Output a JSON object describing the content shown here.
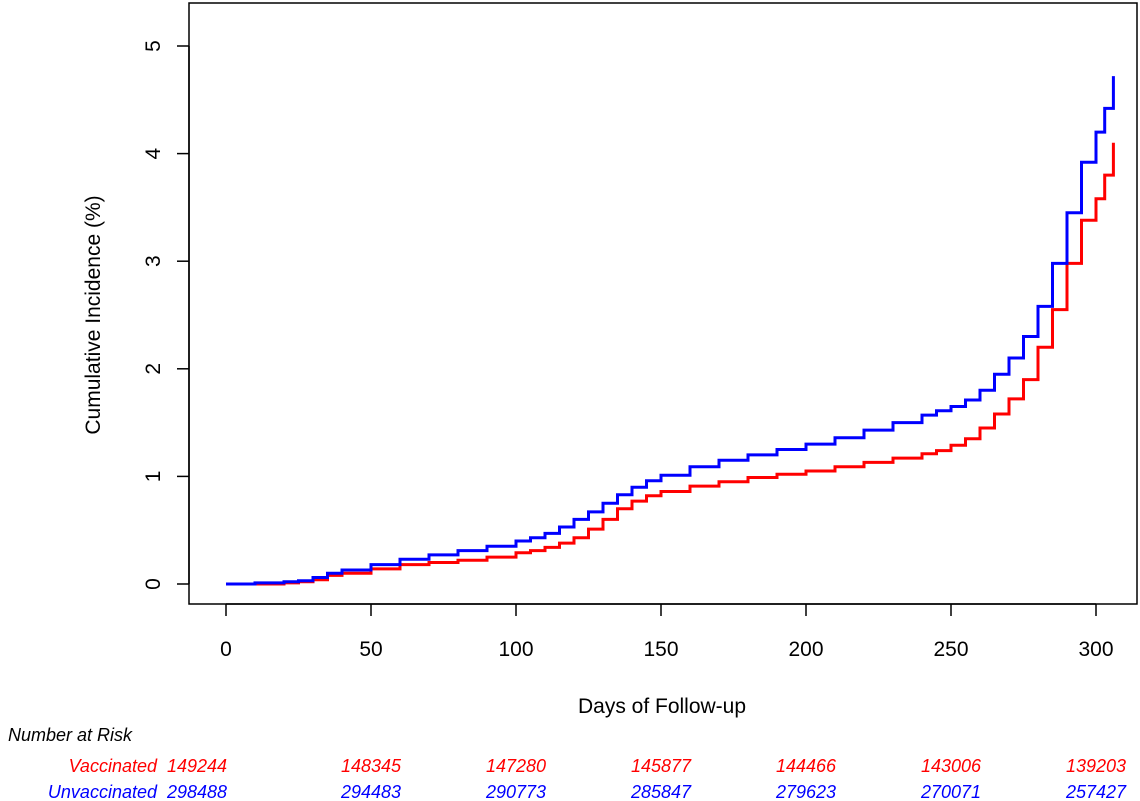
{
  "chart_data": {
    "type": "line",
    "title": "",
    "xlabel": "Days of Follow-up",
    "ylabel": "Cumulative Incidence (%)",
    "xlim": [
      0,
      306
    ],
    "ylim": [
      0,
      5
    ],
    "xticks": [
      "0",
      "50",
      "100",
      "150",
      "200",
      "250",
      "300"
    ],
    "yticks": [
      "0",
      "1",
      "2",
      "3",
      "4",
      "5"
    ],
    "grid": false,
    "series": [
      {
        "name": "Vaccinated",
        "color": "#ff0000",
        "x": [
          0,
          10,
          20,
          25,
          30,
          35,
          40,
          50,
          60,
          70,
          80,
          90,
          100,
          105,
          110,
          115,
          120,
          125,
          130,
          135,
          140,
          145,
          150,
          160,
          170,
          180,
          190,
          200,
          210,
          220,
          230,
          240,
          245,
          250,
          255,
          260,
          265,
          270,
          275,
          280,
          285,
          290,
          295,
          300,
          303,
          306
        ],
        "y": [
          0,
          0.0,
          0.01,
          0.02,
          0.04,
          0.08,
          0.1,
          0.14,
          0.18,
          0.2,
          0.22,
          0.25,
          0.29,
          0.31,
          0.34,
          0.38,
          0.43,
          0.51,
          0.6,
          0.7,
          0.77,
          0.82,
          0.86,
          0.91,
          0.95,
          0.99,
          1.02,
          1.05,
          1.09,
          1.13,
          1.17,
          1.21,
          1.24,
          1.29,
          1.35,
          1.45,
          1.58,
          1.72,
          1.9,
          2.2,
          2.55,
          2.98,
          3.38,
          3.58,
          3.8,
          4.1
        ]
      },
      {
        "name": "Unvaccinated",
        "color": "#0000ff",
        "x": [
          0,
          10,
          20,
          25,
          30,
          35,
          40,
          50,
          60,
          70,
          80,
          90,
          100,
          105,
          110,
          115,
          120,
          125,
          130,
          135,
          140,
          145,
          150,
          160,
          170,
          180,
          190,
          200,
          210,
          220,
          230,
          240,
          245,
          250,
          255,
          260,
          265,
          270,
          275,
          280,
          285,
          290,
          295,
          300,
          303,
          306
        ],
        "y": [
          0,
          0.01,
          0.02,
          0.03,
          0.06,
          0.1,
          0.13,
          0.18,
          0.23,
          0.27,
          0.31,
          0.35,
          0.4,
          0.43,
          0.47,
          0.53,
          0.6,
          0.67,
          0.75,
          0.83,
          0.9,
          0.96,
          1.01,
          1.09,
          1.15,
          1.2,
          1.25,
          1.3,
          1.36,
          1.43,
          1.5,
          1.57,
          1.61,
          1.65,
          1.71,
          1.8,
          1.95,
          2.1,
          2.3,
          2.58,
          2.98,
          3.45,
          3.92,
          4.2,
          4.42,
          4.72
        ]
      }
    ]
  },
  "risk_table": {
    "heading": "Number at Risk",
    "rows": [
      {
        "label": "Vaccinated",
        "color": "#ff0000",
        "values": [
          "149244",
          "148345",
          "147280",
          "145877",
          "144466",
          "143006",
          "139203"
        ]
      },
      {
        "label": "Unvaccinated",
        "color": "#0000ff",
        "values": [
          "298488",
          "294483",
          "290773",
          "285847",
          "279623",
          "270071",
          "257427"
        ]
      }
    ]
  }
}
